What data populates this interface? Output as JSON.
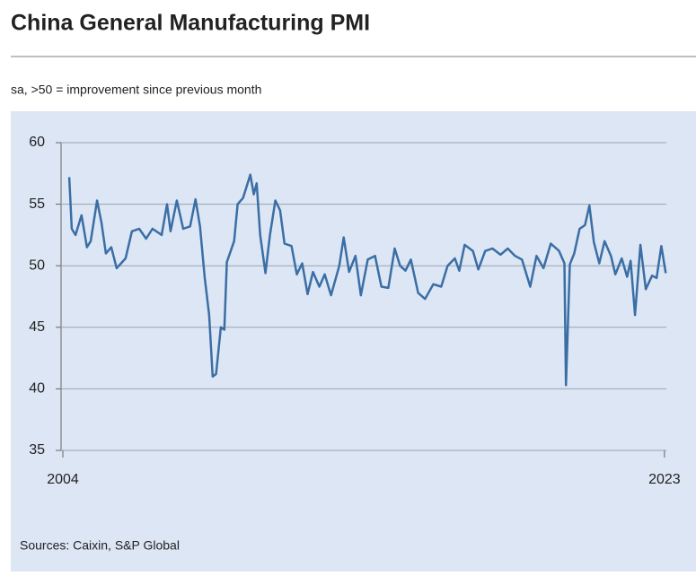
{
  "chart_data": {
    "type": "line",
    "title": "China General Manufacturing PMI",
    "subtitle": "sa, >50 = improvement since previous month",
    "source": "Sources: Caixin, S&P Global",
    "x": [
      2004.2,
      2004.28,
      2004.4,
      2004.59,
      2004.76,
      2004.88,
      2005.08,
      2005.22,
      2005.36,
      2005.53,
      2005.7,
      2005.98,
      2006.18,
      2006.41,
      2006.63,
      2006.83,
      2007.12,
      2007.29,
      2007.4,
      2007.6,
      2007.8,
      2008.02,
      2008.19,
      2008.33,
      2008.48,
      2008.62,
      2008.73,
      2008.84,
      2008.99,
      2009.1,
      2009.18,
      2009.41,
      2009.52,
      2009.69,
      2009.92,
      2010.03,
      2010.12,
      2010.23,
      2010.4,
      2010.54,
      2010.71,
      2010.86,
      2011.0,
      2011.22,
      2011.39,
      2011.56,
      2011.73,
      2011.9,
      2012.1,
      2012.27,
      2012.47,
      2012.73,
      2012.87,
      2013.04,
      2013.24,
      2013.41,
      2013.63,
      2013.86,
      2014.06,
      2014.28,
      2014.48,
      2014.65,
      2014.82,
      2014.99,
      2015.22,
      2015.44,
      2015.7,
      2015.95,
      2016.15,
      2016.38,
      2016.52,
      2016.69,
      2016.95,
      2017.12,
      2017.34,
      2017.57,
      2017.82,
      2018.05,
      2018.28,
      2018.5,
      2018.76,
      2018.96,
      2019.18,
      2019.41,
      2019.67,
      2019.84,
      2019.89,
      2020.01,
      2020.15,
      2020.32,
      2020.49,
      2020.63,
      2020.77,
      2020.94,
      2021.11,
      2021.31,
      2021.45,
      2021.65,
      2021.82,
      2021.93,
      2022.07,
      2022.24,
      2022.41,
      2022.61,
      2022.75,
      2022.9,
      2023.04
    ],
    "values": [
      57.2,
      53.0,
      52.5,
      54.1,
      51.5,
      52.0,
      55.3,
      53.5,
      51.0,
      51.5,
      49.8,
      50.6,
      52.8,
      53.0,
      52.2,
      53.0,
      52.5,
      55.0,
      52.8,
      55.3,
      53.0,
      53.2,
      55.4,
      53.2,
      49.0,
      46.0,
      41.0,
      41.2,
      45.0,
      44.8,
      50.3,
      52.0,
      55.0,
      55.5,
      57.4,
      55.8,
      56.7,
      52.5,
      49.4,
      52.5,
      55.3,
      54.5,
      51.8,
      51.6,
      49.3,
      50.2,
      47.7,
      49.5,
      48.3,
      49.3,
      47.6,
      50.0,
      52.3,
      49.5,
      50.8,
      47.6,
      50.5,
      50.8,
      48.3,
      48.2,
      51.4,
      50.0,
      49.6,
      50.5,
      47.8,
      47.3,
      48.5,
      48.3,
      50.0,
      50.6,
      49.6,
      51.7,
      51.2,
      49.7,
      51.2,
      51.4,
      50.9,
      51.4,
      50.8,
      50.5,
      48.3,
      50.8,
      49.8,
      51.8,
      51.2,
      50.2,
      40.3,
      50.1,
      51.0,
      53.0,
      53.3,
      54.9,
      51.9,
      50.2,
      52.0,
      50.8,
      49.3,
      50.6,
      49.1,
      50.4,
      46.0,
      51.7,
      48.1,
      49.2,
      49.0,
      51.6,
      49.4
    ],
    "color": "#3a6ea5",
    "xlim": [
      2004,
      2023.06
    ],
    "xticks": [
      2004,
      2023
    ],
    "ylim": [
      35,
      60
    ],
    "yticks": [
      35,
      40,
      45,
      50,
      55,
      60
    ],
    "grid": true
  }
}
